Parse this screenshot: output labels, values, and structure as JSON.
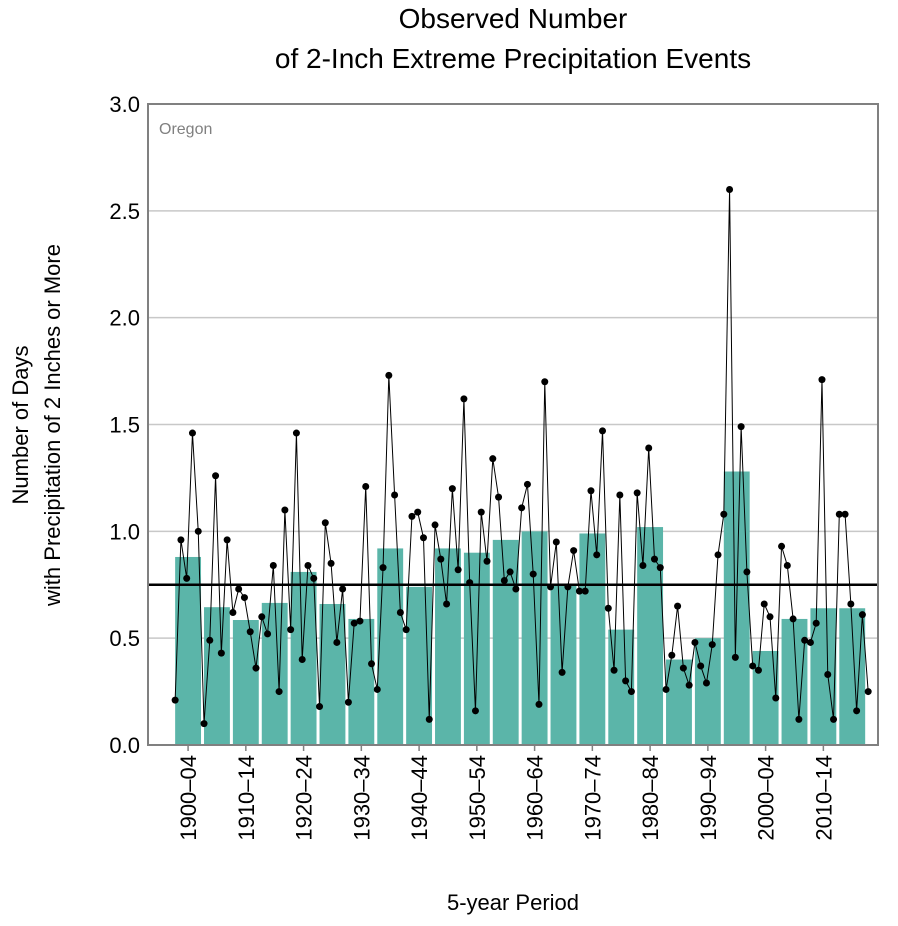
{
  "chart_data": {
    "type": "bar",
    "title": [
      "Observed Number",
      "of 2-Inch Extreme Precipitation Events"
    ],
    "y_label": [
      "Number of Days",
      "with Precipitation of 2 Inches or More"
    ],
    "x_label": "5-year Period",
    "annotation": "Oregon",
    "categories": [
      "1900–04",
      null,
      "1910–14",
      null,
      "1920–24",
      null,
      "1930–34",
      null,
      "1940–44",
      null,
      "1950–54",
      null,
      "1960–64",
      null,
      "1970–74",
      null,
      "1980–84",
      null,
      "1990–94",
      null,
      "2000–04",
      null,
      "2010–14",
      null
    ],
    "values": [
      0.88,
      0.645,
      0.585,
      0.665,
      0.81,
      0.66,
      0.59,
      0.92,
      0.74,
      0.92,
      0.9,
      0.96,
      1.0,
      0.75,
      0.99,
      0.54,
      1.02,
      0.4,
      0.5,
      1.28,
      0.44,
      0.59,
      0.64,
      0.64
    ],
    "color": "#5bb5a9",
    "line": {
      "type": "line",
      "color": "#000000",
      "x": [
        1900,
        1901,
        1902,
        1903,
        1904,
        1905,
        1906,
        1907,
        1908,
        1909,
        1910,
        1911,
        1912,
        1913,
        1914,
        1915,
        1916,
        1917,
        1918,
        1919,
        1920,
        1921,
        1922,
        1923,
        1924,
        1925,
        1926,
        1927,
        1928,
        1929,
        1930,
        1931,
        1932,
        1933,
        1934,
        1935,
        1936,
        1937,
        1938,
        1939,
        1940,
        1941,
        1942,
        1943,
        1944,
        1945,
        1946,
        1947,
        1948,
        1949,
        1950,
        1951,
        1952,
        1953,
        1954,
        1955,
        1956,
        1957,
        1958,
        1959,
        1960,
        1961,
        1962,
        1963,
        1964,
        1965,
        1966,
        1967,
        1968,
        1969,
        1970,
        1971,
        1972,
        1973,
        1974,
        1975,
        1976,
        1977,
        1978,
        1979,
        1980,
        1981,
        1982,
        1983,
        1984,
        1985,
        1986,
        1987,
        1988,
        1989,
        1990,
        1991,
        1992,
        1993,
        1994,
        1995,
        1996,
        1997,
        1998,
        1999,
        2000,
        2001,
        2002,
        2003,
        2004,
        2005,
        2006,
        2007,
        2008,
        2009,
        2010,
        2011,
        2012,
        2013,
        2014,
        2015,
        2016,
        2017,
        2018,
        2019,
        2020
      ],
      "values": [
        0.21,
        0.96,
        0.78,
        1.46,
        1.0,
        0.1,
        0.49,
        1.26,
        0.43,
        0.96,
        0.62,
        0.73,
        0.69,
        0.53,
        0.36,
        0.6,
        0.52,
        0.84,
        0.25,
        1.1,
        0.54,
        1.46,
        0.4,
        0.84,
        0.78,
        0.18,
        1.04,
        0.85,
        0.48,
        0.73,
        0.2,
        0.57,
        0.58,
        1.21,
        0.38,
        0.26,
        0.83,
        1.73,
        1.17,
        0.62,
        0.54,
        1.07,
        1.09,
        0.97,
        0.12,
        1.03,
        0.87,
        0.66,
        1.2,
        0.82,
        1.62,
        0.76,
        0.16,
        1.09,
        0.86,
        1.34,
        1.16,
        0.77,
        0.81,
        0.73,
        1.11,
        1.22,
        0.8,
        0.19,
        1.7,
        0.74,
        0.95,
        0.34,
        0.74,
        0.91,
        0.72,
        0.72,
        1.19,
        0.89,
        1.47,
        0.64,
        0.35,
        1.17,
        0.3,
        0.25,
        1.18,
        0.84,
        1.39,
        0.87,
        0.83,
        0.26,
        0.42,
        0.65,
        0.36,
        0.28,
        0.48,
        0.37,
        0.29,
        0.47,
        0.89,
        1.08,
        2.6,
        0.41,
        1.49,
        0.81,
        0.37,
        0.35,
        0.66,
        0.6,
        0.22,
        0.93,
        0.84,
        0.59,
        0.12,
        0.49,
        0.48,
        0.57,
        1.71,
        0.33,
        0.12,
        1.08,
        1.08,
        0.66,
        0.16,
        0.61,
        0.25
      ]
    },
    "reference_line": 0.75,
    "xlim": [
      1895.3,
      2021.7
    ],
    "ylim": [
      0,
      3
    ],
    "yticks": [
      {
        "value": 0,
        "label": "0.0"
      },
      {
        "value": 0.5,
        "label": "0.5"
      },
      {
        "value": 1,
        "label": "1.0"
      },
      {
        "value": 1.5,
        "label": "1.5"
      },
      {
        "value": 2,
        "label": "2.0"
      },
      {
        "value": 2.5,
        "label": "2.5"
      },
      {
        "value": 3,
        "label": "3.0"
      }
    ],
    "grid": true
  }
}
